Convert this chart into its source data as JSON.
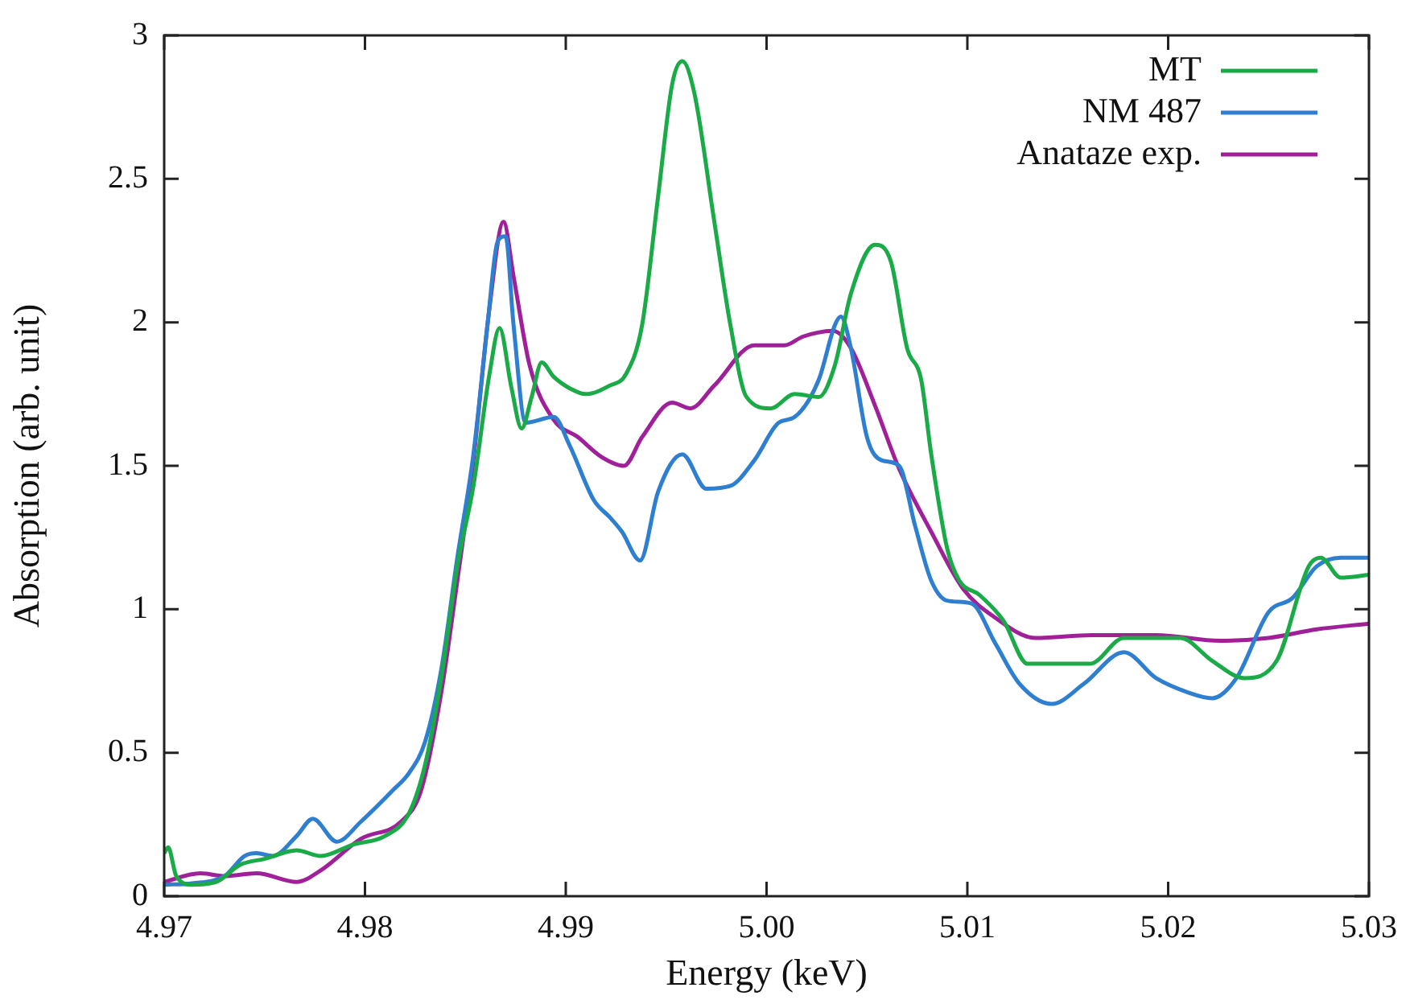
{
  "chart_data": {
    "type": "line",
    "xlabel": "Energy (keV)",
    "ylabel": "Absorption (arb. unit)",
    "xlim": [
      4.97,
      5.03
    ],
    "xticks": [
      4.97,
      4.98,
      4.99,
      {
        "value": 5.0,
        "label": "5.00"
      },
      5.01,
      5.02,
      5.03
    ],
    "ylim": [
      0,
      3
    ],
    "yticks": [
      0,
      0.5,
      1,
      1.5,
      2,
      2.5,
      3
    ],
    "grid": false,
    "legend": "top right",
    "marker": "none",
    "line_style": "solid",
    "series": [
      {
        "name": "MT",
        "color": "#1aab48",
        "x": [
          4.97,
          4.9702,
          4.9706,
          4.9714,
          4.9726,
          4.9738,
          4.975,
          4.9766,
          4.9778,
          4.9794,
          4.981,
          4.9822,
          4.983,
          4.9838,
          4.9846,
          4.9854,
          4.9862,
          4.9867,
          4.9873,
          4.9878,
          4.9883,
          4.9888,
          4.9894,
          4.9902,
          4.991,
          4.9922,
          4.993,
          4.9938,
          4.9946,
          4.9953,
          4.9958,
          4.9964,
          4.9974,
          4.9982,
          4.999,
          5.0002,
          5.0014,
          5.0026,
          5.0034,
          5.0042,
          5.0054,
          5.0062,
          5.007,
          5.0077,
          5.0082,
          5.009,
          5.0096,
          5.0106,
          5.0118,
          5.013,
          5.0161,
          5.0178,
          5.0194,
          5.0206,
          5.0222,
          5.0238,
          5.0254,
          5.027,
          5.0276,
          5.0286,
          5.03
        ],
        "values": [
          0.15,
          0.17,
          0.07,
          0.04,
          0.05,
          0.11,
          0.13,
          0.16,
          0.14,
          0.18,
          0.21,
          0.29,
          0.46,
          0.76,
          1.15,
          1.43,
          1.82,
          1.98,
          1.77,
          1.63,
          1.74,
          1.86,
          1.81,
          1.77,
          1.75,
          1.78,
          1.82,
          1.99,
          2.44,
          2.83,
          2.91,
          2.8,
          2.35,
          1.99,
          1.74,
          1.7,
          1.75,
          1.74,
          1.85,
          2.1,
          2.27,
          2.21,
          1.91,
          1.8,
          1.54,
          1.21,
          1.1,
          1.05,
          0.96,
          0.81,
          0.81,
          0.9,
          0.9,
          0.9,
          0.82,
          0.76,
          0.82,
          1.15,
          1.18,
          1.11,
          1.12
        ]
      },
      {
        "name": "NM 487",
        "color": "#2f7fd0",
        "x": [
          4.97,
          4.9714,
          4.973,
          4.974,
          4.9746,
          4.9754,
          4.9766,
          4.9774,
          4.9786,
          4.9798,
          4.9814,
          4.9822,
          4.983,
          4.9838,
          4.9846,
          4.9854,
          4.9861,
          4.9866,
          4.987,
          4.9874,
          4.988,
          4.9894,
          4.9902,
          4.9914,
          4.9922,
          4.9928,
          4.9937,
          4.9946,
          4.9958,
          4.997,
          4.9982,
          4.9994,
          5.0006,
          5.0014,
          5.0026,
          5.0034,
          5.0037,
          5.0042,
          5.005,
          5.0057,
          5.0066,
          5.0074,
          5.0082,
          5.009,
          5.0102,
          5.0114,
          5.0126,
          5.0142,
          5.0158,
          5.0178,
          5.0194,
          5.021,
          5.0222,
          5.0234,
          5.025,
          5.0262,
          5.0274,
          5.0286,
          5.03
        ],
        "values": [
          0.04,
          0.045,
          0.07,
          0.14,
          0.15,
          0.14,
          0.21,
          0.27,
          0.19,
          0.26,
          0.37,
          0.43,
          0.54,
          0.79,
          1.18,
          1.54,
          1.99,
          2.28,
          2.3,
          1.99,
          1.65,
          1.67,
          1.57,
          1.38,
          1.32,
          1.27,
          1.17,
          1.41,
          1.54,
          1.42,
          1.43,
          1.52,
          1.65,
          1.67,
          1.8,
          1.99,
          2.02,
          1.91,
          1.6,
          1.52,
          1.5,
          1.29,
          1.1,
          1.03,
          1.02,
          0.88,
          0.74,
          0.67,
          0.74,
          0.85,
          0.76,
          0.71,
          0.69,
          0.76,
          0.99,
          1.04,
          1.15,
          1.18,
          1.18
        ]
      },
      {
        "name": "Anataze exp.",
        "color": "#a0209a",
        "x": [
          4.97,
          4.9718,
          4.973,
          4.9746,
          4.9766,
          4.9778,
          4.9798,
          4.9818,
          4.9828,
          4.9838,
          4.9846,
          4.9854,
          4.9862,
          4.9869,
          4.9874,
          4.9882,
          4.9894,
          4.9906,
          4.9918,
          4.9929,
          4.9938,
          4.9953,
          4.9962,
          4.9974,
          4.9994,
          5.0009,
          5.0018,
          5.0033,
          5.0042,
          5.0054,
          5.0066,
          5.0082,
          5.0098,
          5.0114,
          5.0134,
          5.0162,
          5.0194,
          5.0226,
          5.025,
          5.0274,
          5.03
        ],
        "values": [
          0.05,
          0.08,
          0.07,
          0.08,
          0.05,
          0.09,
          0.2,
          0.26,
          0.37,
          0.71,
          1.1,
          1.52,
          2.05,
          2.35,
          2.16,
          1.85,
          1.66,
          1.6,
          1.53,
          1.5,
          1.6,
          1.72,
          1.7,
          1.78,
          1.92,
          1.92,
          1.95,
          1.97,
          1.91,
          1.71,
          1.49,
          1.27,
          1.07,
          0.97,
          0.9,
          0.91,
          0.91,
          0.89,
          0.9,
          0.93,
          0.95
        ]
      }
    ]
  }
}
